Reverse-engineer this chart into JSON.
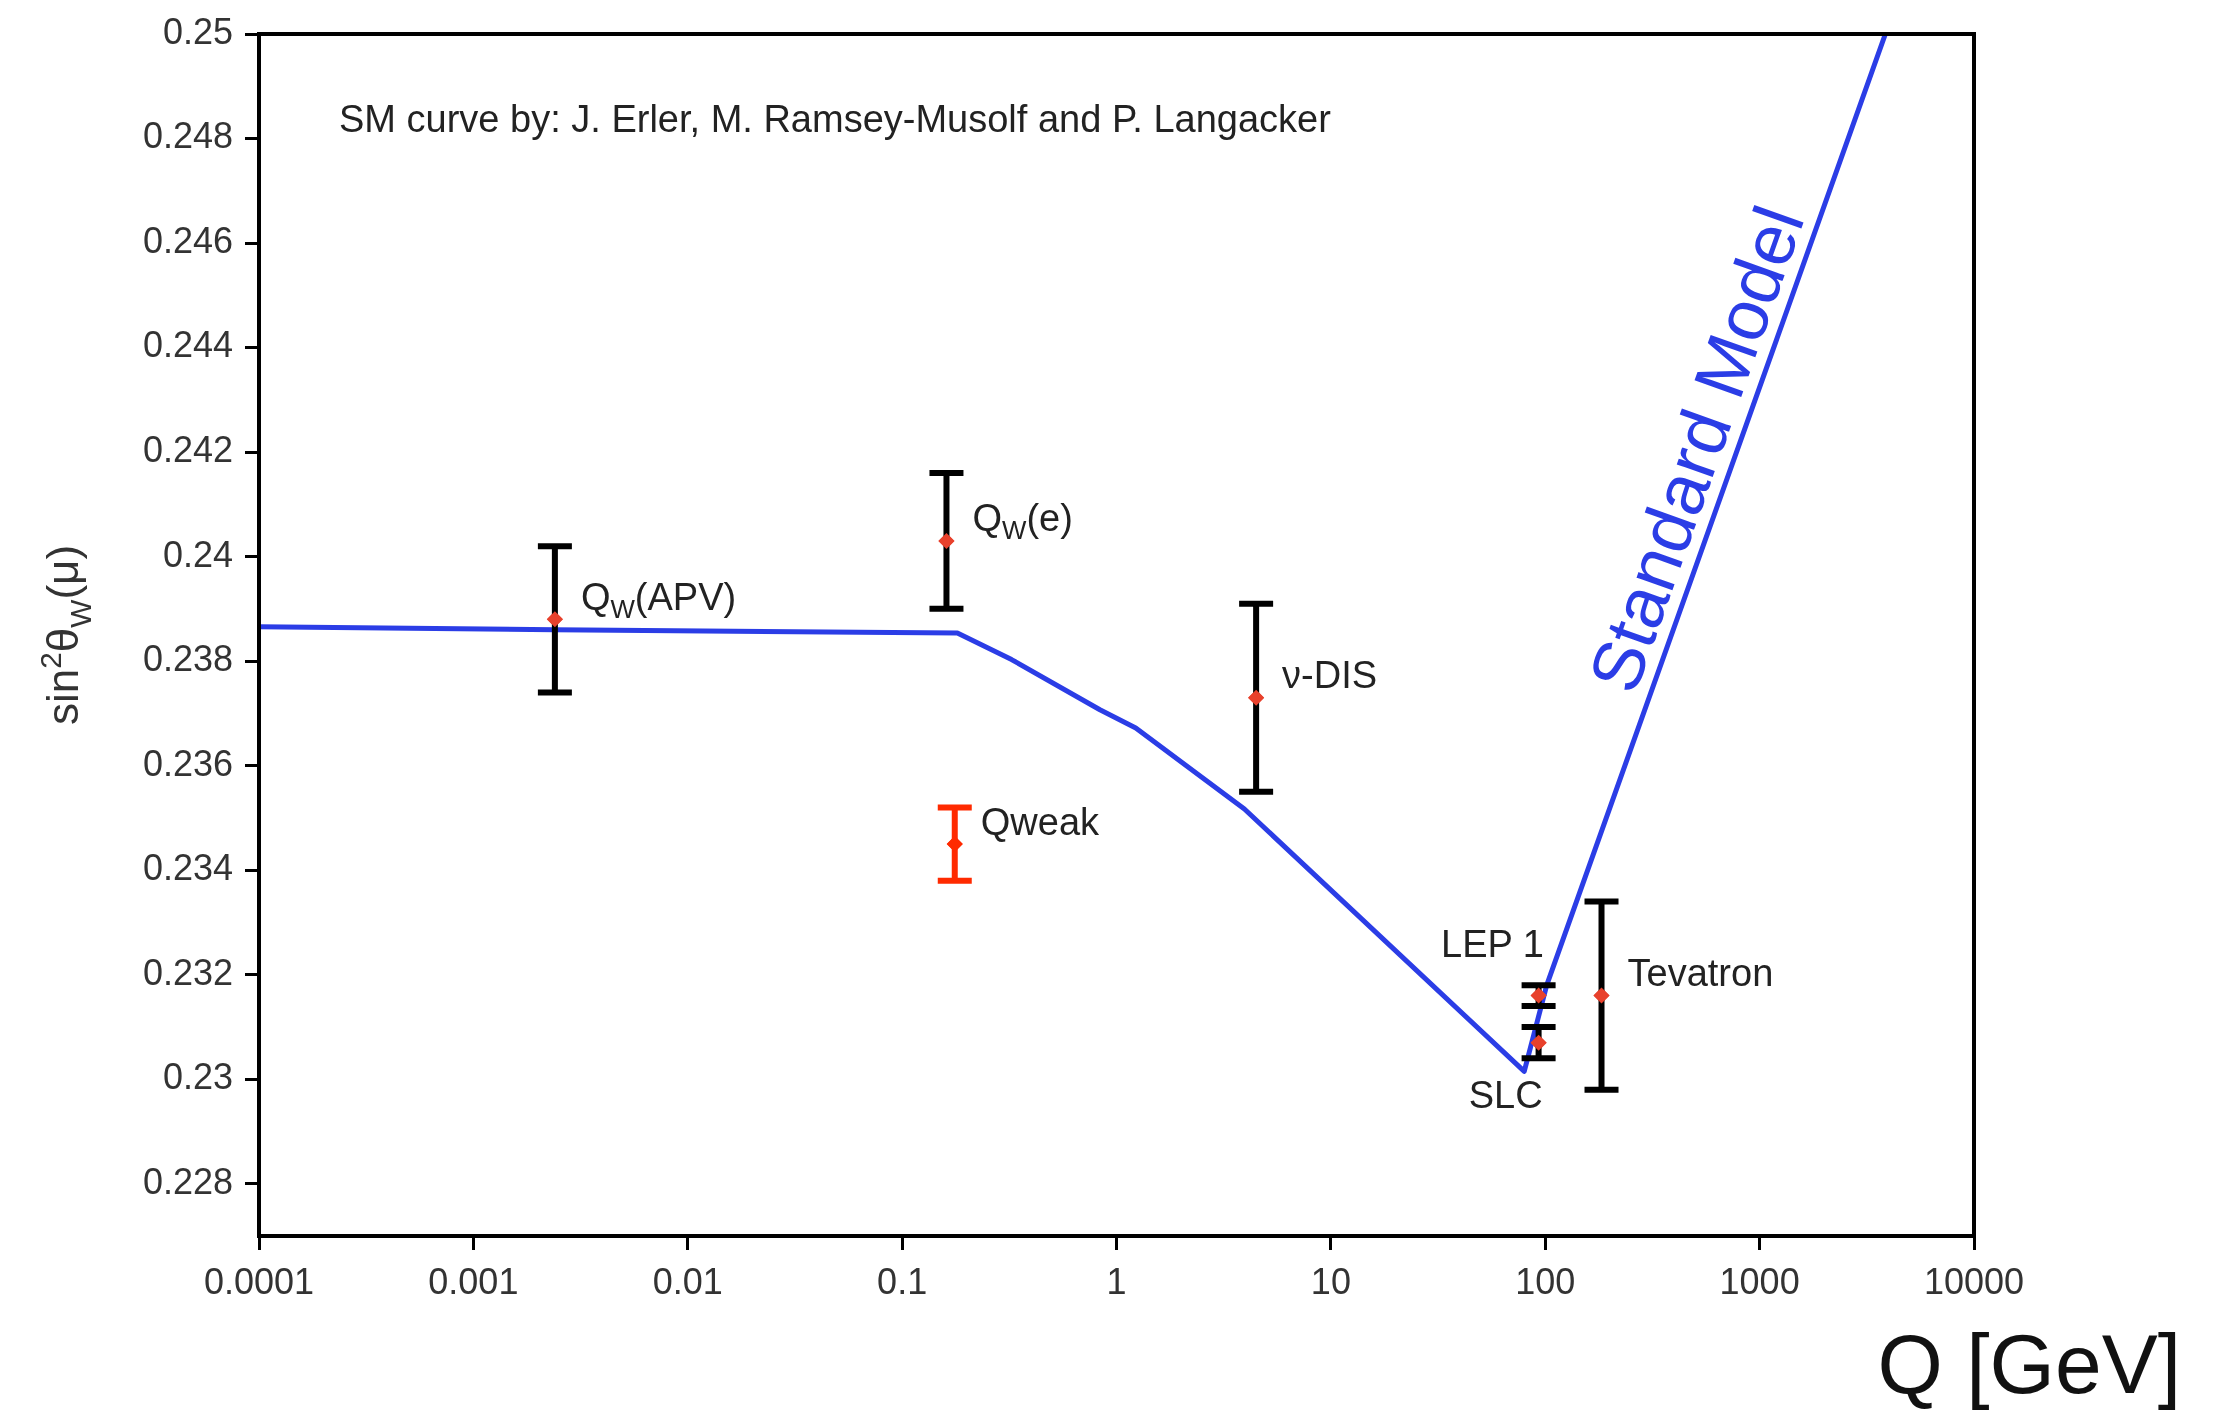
{
  "chart_data": {
    "type": "scatter",
    "xlabel": "Q [GeV]",
    "ylabel": "sin$^{2}$θ$_{W}$(μ)",
    "log": "x",
    "grid": false,
    "legend": false,
    "marker": "diamond",
    "xlim": [
      0.0001,
      10000
    ],
    "xticks": [
      0.0001,
      0.001,
      0.01,
      0.1,
      1,
      10,
      100,
      1000,
      10000
    ],
    "ylim": [
      0.227,
      0.25
    ],
    "yticks": [
      0.228,
      0.23,
      0.232,
      0.234,
      0.236,
      0.238,
      0.24,
      0.242,
      0.244,
      0.246,
      0.248,
      0.25
    ],
    "series": [
      {
        "type": "line",
        "name": "Standard Model",
        "color": "#2b3de6",
        "marker": "none",
        "x": [
          0.0001,
          0.0024,
          0.181,
          0.324,
          0.837,
          1.23,
          3.95,
          79.8,
          101.6,
          3860
        ],
        "values": [
          0.23866,
          0.2386,
          0.23854,
          0.23803,
          0.23707,
          0.23672,
          0.23517,
          0.23015,
          0.2318,
          0.25
        ]
      },
      {
        "name": "Q$_{W}$(APV)",
        "color": "#000000",
        "colors": [
          "#e8412c"
        ],
        "x": [
          0.0024
        ],
        "values": [
          0.2388
        ],
        "errors": [
          0.0014
        ]
      },
      {
        "name": "Q$_{W}$(e)",
        "color": "#000000",
        "colors": [
          "#e8412c"
        ],
        "x": [
          0.161
        ],
        "values": [
          0.2403
        ],
        "errors": [
          0.0013
        ]
      },
      {
        "name": "Qweak",
        "color": "#ff2a00",
        "colors": [
          "#ff2a00"
        ],
        "x": [
          0.176
        ],
        "values": [
          0.2345
        ],
        "errors": [
          0.0007
        ]
      },
      {
        "name": "ν-DIS",
        "color": "#000000",
        "colors": [
          "#e8412c"
        ],
        "x": [
          4.48
        ],
        "values": [
          0.2373
        ],
        "errors": [
          0.0018
        ]
      },
      {
        "name": "LEP 1",
        "color": "#000000",
        "colors": [
          "#e8412c"
        ],
        "x": [
          93.1
        ],
        "values": [
          0.2316
        ],
        "errors": [
          0.0002
        ]
      },
      {
        "name": "SLC",
        "color": "#000000",
        "colors": [
          "#e8412c"
        ],
        "x": [
          93.1
        ],
        "values": [
          0.2307
        ],
        "errors": [
          0.0003
        ]
      },
      {
        "name": "Tevatron",
        "color": "#000000",
        "colors": [
          "#e8412c"
        ],
        "x": [
          183
        ],
        "values": [
          0.2316
        ],
        "errors": [
          0.0018
        ]
      }
    ],
    "annotations": [
      "SM curve by: J. Erler, M. Ramsey-Musolf and P. Langacker"
    ]
  }
}
